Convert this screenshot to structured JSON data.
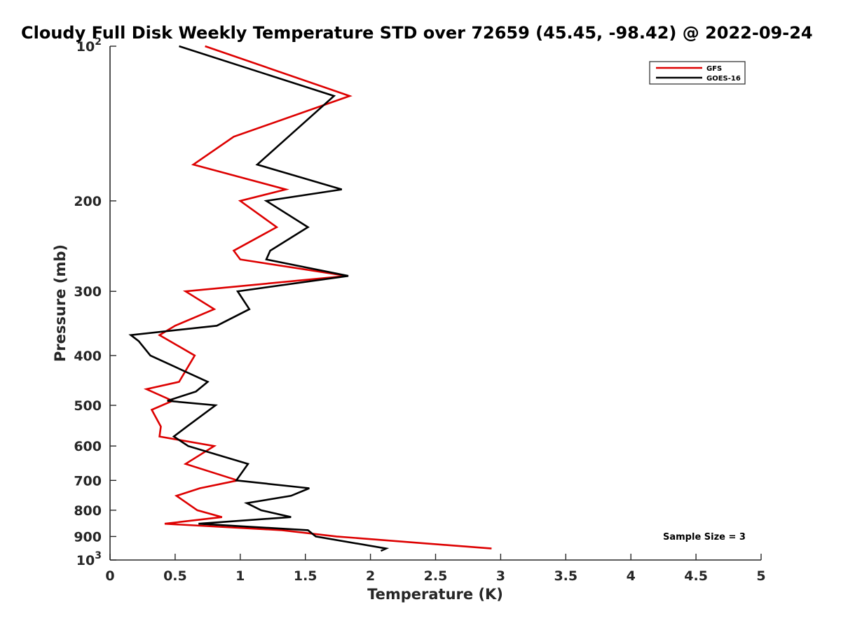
{
  "chart_data": {
    "type": "line",
    "title": "Cloudy Full Disk Weekly Temperature STD over 72659 (45.45, -98.42) @ 2022-09-24",
    "xlabel": "Temperature (K)",
    "ylabel": "Pressure (mb)",
    "xlim": [
      0,
      5
    ],
    "ylim": [
      100,
      1000
    ],
    "y_scale": "log",
    "y_reversed": true,
    "x_ticks": [
      "0",
      "0.5",
      "1",
      "1.5",
      "2",
      "2.5",
      "3",
      "3.5",
      "4",
      "4.5",
      "5"
    ],
    "x_tick_values": [
      0,
      0.5,
      1,
      1.5,
      2,
      2.5,
      3,
      3.5,
      4,
      4.5,
      5
    ],
    "y_ticks": [
      {
        "value": 100,
        "base": "10",
        "exp": "2"
      },
      {
        "value": 200,
        "label": "200"
      },
      {
        "value": 300,
        "label": "300"
      },
      {
        "value": 400,
        "label": "400"
      },
      {
        "value": 500,
        "label": "500"
      },
      {
        "value": 600,
        "label": "600"
      },
      {
        "value": 700,
        "label": "700"
      },
      {
        "value": 800,
        "label": "800"
      },
      {
        "value": 900,
        "label": "900"
      },
      {
        "value": 1000,
        "base": "10",
        "exp": "3"
      }
    ],
    "grid": false,
    "legend_position": "top-right",
    "annotation": "Sample Size = 3",
    "series": [
      {
        "name": "GFS",
        "color": "#dd0000",
        "points": [
          [
            0.73,
            100
          ],
          [
            1.84,
            125
          ],
          [
            0.95,
            150
          ],
          [
            0.64,
            170
          ],
          [
            1.35,
            190
          ],
          [
            1.0,
            200
          ],
          [
            1.28,
            225
          ],
          [
            0.95,
            250
          ],
          [
            1.0,
            260
          ],
          [
            1.82,
            280
          ],
          [
            0.58,
            300
          ],
          [
            0.8,
            325
          ],
          [
            0.5,
            350
          ],
          [
            0.38,
            365
          ],
          [
            0.65,
            400
          ],
          [
            0.53,
            450
          ],
          [
            0.28,
            465
          ],
          [
            0.48,
            490
          ],
          [
            0.32,
            510
          ],
          [
            0.39,
            550
          ],
          [
            0.38,
            575
          ],
          [
            0.8,
            600
          ],
          [
            0.58,
            650
          ],
          [
            0.98,
            700
          ],
          [
            0.69,
            725
          ],
          [
            0.51,
            750
          ],
          [
            0.67,
            800
          ],
          [
            0.86,
            825
          ],
          [
            0.42,
            850
          ],
          [
            1.32,
            875
          ],
          [
            1.74,
            900
          ],
          [
            2.93,
            950
          ]
        ]
      },
      {
        "name": "GOES-16",
        "color": "#000000",
        "points": [
          [
            0.53,
            100
          ],
          [
            1.72,
            125
          ],
          [
            1.37,
            150
          ],
          [
            1.13,
            170
          ],
          [
            1.78,
            190
          ],
          [
            1.2,
            200
          ],
          [
            1.52,
            225
          ],
          [
            1.23,
            250
          ],
          [
            1.2,
            260
          ],
          [
            1.83,
            280
          ],
          [
            0.98,
            300
          ],
          [
            1.07,
            325
          ],
          [
            0.82,
            350
          ],
          [
            0.16,
            365
          ],
          [
            0.22,
            375
          ],
          [
            0.31,
            400
          ],
          [
            0.75,
            450
          ],
          [
            0.66,
            470
          ],
          [
            0.44,
            490
          ],
          [
            0.81,
            500
          ],
          [
            0.59,
            550
          ],
          [
            0.49,
            575
          ],
          [
            0.6,
            600
          ],
          [
            1.06,
            650
          ],
          [
            0.97,
            700
          ],
          [
            1.53,
            725
          ],
          [
            1.39,
            750
          ],
          [
            1.05,
            775
          ],
          [
            1.16,
            800
          ],
          [
            1.39,
            825
          ],
          [
            0.68,
            850
          ],
          [
            1.52,
            875
          ],
          [
            1.58,
            900
          ],
          [
            2.12,
            950
          ],
          [
            2.08,
            960
          ]
        ]
      }
    ]
  }
}
